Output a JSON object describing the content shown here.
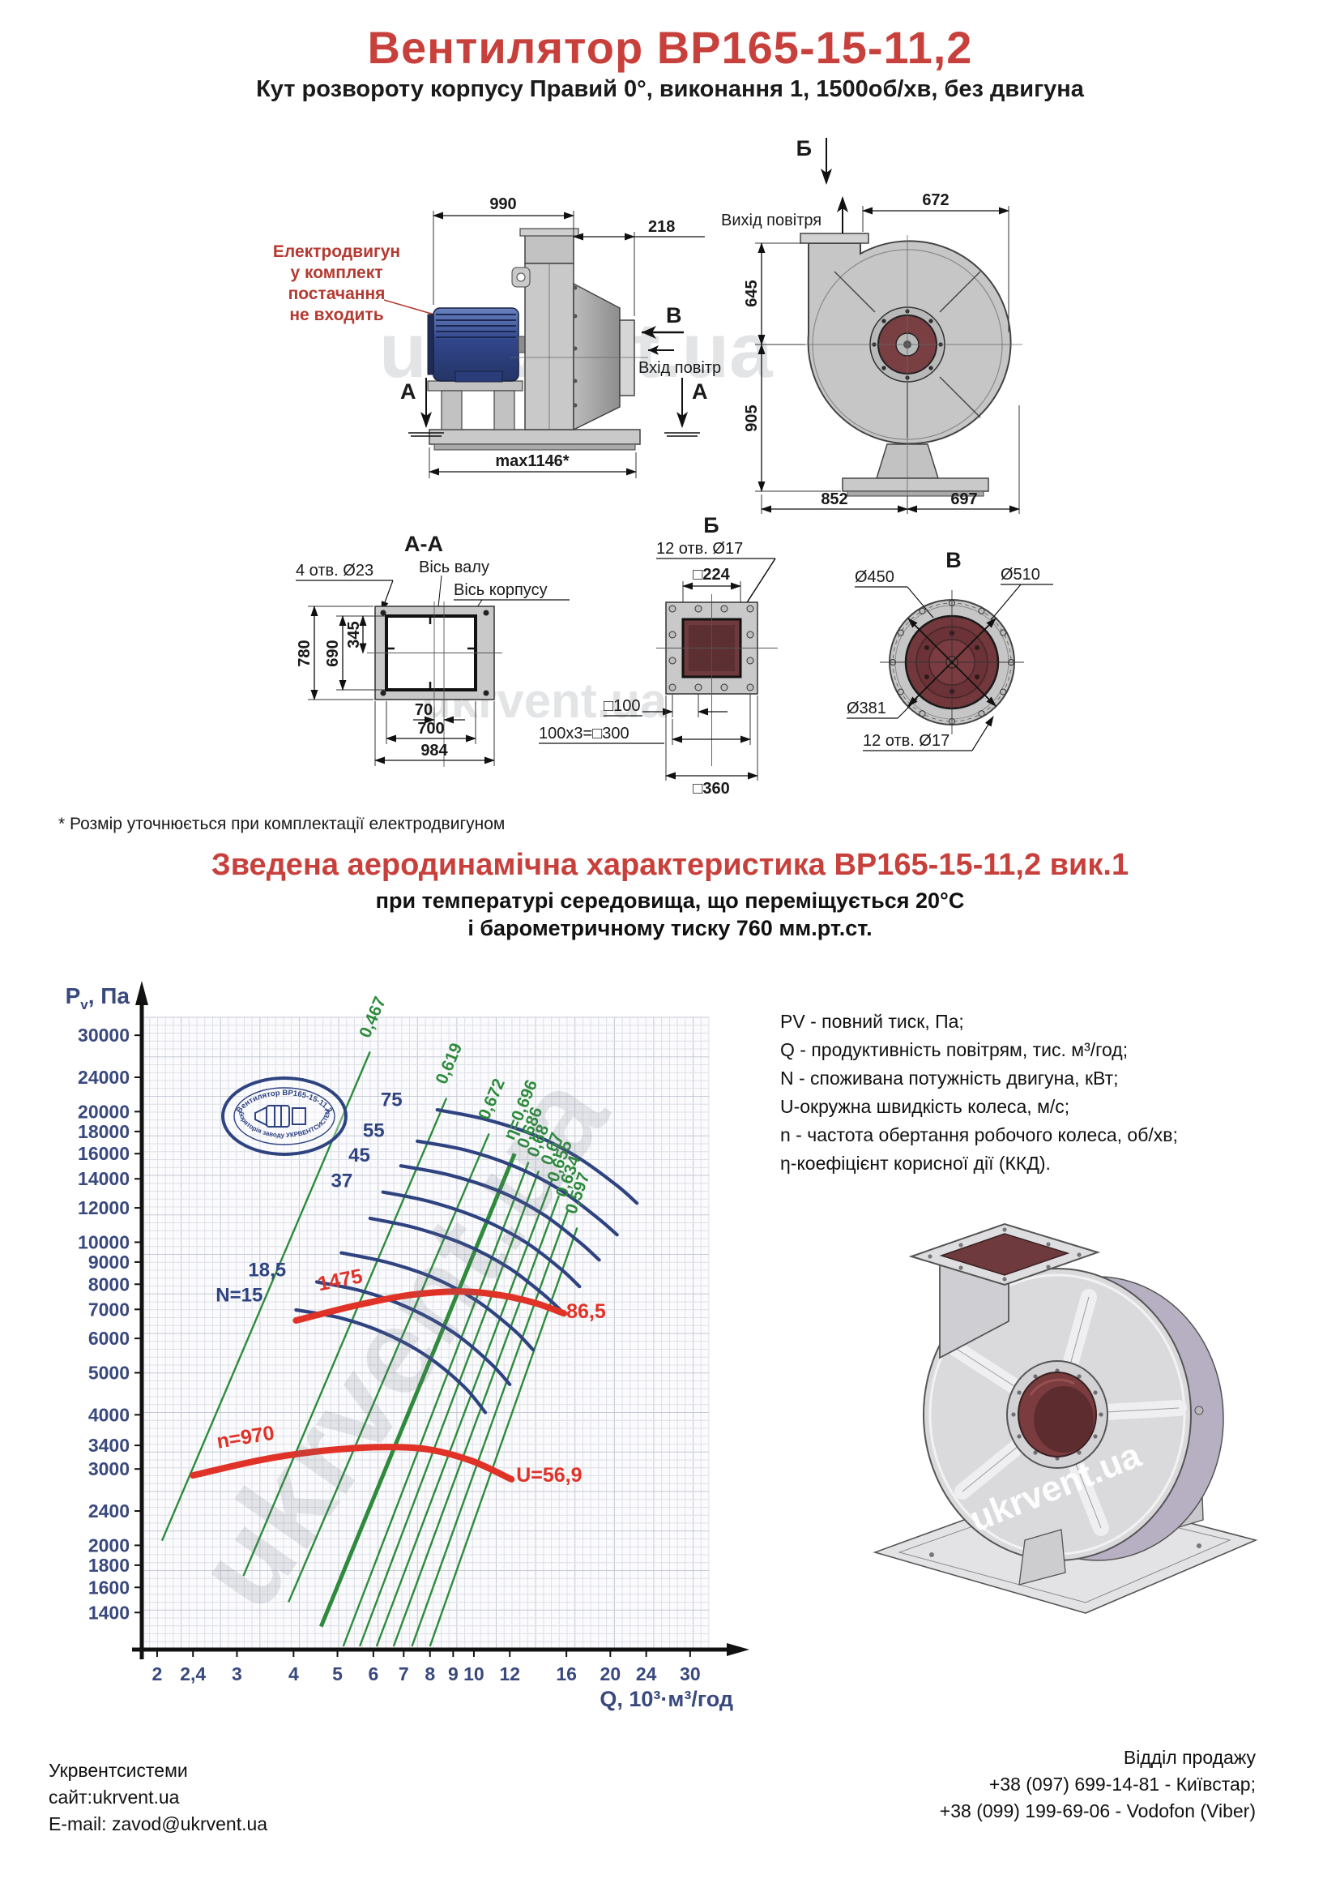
{
  "header": {
    "title": "Вентилятор ВР165-15-11,2",
    "subtitle": "Кут розвороту корпусу Правий 0°, виконання 1, 1500об/хв, без двигуна"
  },
  "page": {
    "note": "* Розмір уточнюється при комплектації електродвигуном"
  },
  "aero": {
    "title": "Зведена аеродинамічна характеристика ВР165-15-11,2 вик.1",
    "sub1": "при температурі середовища, що переміщується 20°С",
    "sub2": "і барометричному тиску 760 мм.рт.ст."
  },
  "drawings": {
    "watermark": "ukrvent.ua",
    "motor_note": [
      "Електродвигун",
      "у комплект постачання",
      "не входить"
    ],
    "side": {
      "d990": "990",
      "d218": "218",
      "dmax": "max1146*",
      "B": "В",
      "inlet": "Вхід повітря",
      "A_left": "А",
      "A_right": "А"
    },
    "front": {
      "B": "Б",
      "outlet": "Вихід повітря",
      "d672": "672",
      "d645": "645",
      "d905": "905",
      "d852": "852",
      "d697": "697"
    },
    "aa": {
      "title": "А-А",
      "holes": "4 отв. Ø23",
      "axis1": "Вісь валу",
      "axis2": "Вісь корпусу",
      "d780": "780",
      "d690": "690",
      "d345": "345",
      "d70": "70",
      "d700": "700",
      "d984": "984"
    },
    "b": {
      "title": "Б",
      "holes": "12 отв. Ø17",
      "d224": "□224",
      "d100": "□100",
      "d300": "100x3=□300",
      "d360": "□360"
    },
    "v": {
      "title": "В",
      "d450": "Ø450",
      "d510": "Ø510",
      "d381": "Ø381",
      "holes": "12 отв. Ø17"
    }
  },
  "stamp": {
    "top": "Вентилятор ВР165-15-11,2",
    "bottom": "лабораторія заводу УКРВЕНТСИСТЕМИ"
  },
  "legend_lines": [
    "PV - повний тиск, Па;",
    "Q - продуктивність повітрям, тис. м³/год;",
    "N - споживана потужність двигуна, кВт;",
    "U-окружна швидкість колеса, м/с;",
    "n - частота обертання робочого колеса, об/хв;",
    "η-коефіцієнт корисної дії (ККД)."
  ],
  "footer": {
    "company": "Укрвентсистеми",
    "site": "сайт:ukrvent.ua",
    "email": "E-mail: zavod@ukrvent.ua",
    "sales": "Відділ продажу",
    "phone1": "+38 (097) 699-14-81 - Київстар;",
    "phone2": "+38 (099) 199-69-06 - Vodofon (Viber)"
  },
  "colors": {
    "accent_red": "#C8403B",
    "curve_blue": "#2E4380",
    "line_green": "#2E8B3C",
    "curve_red": "#E03227",
    "tick_blue": "#39497E"
  },
  "chart_data": {
    "type": "line",
    "title": "Зведена аеродинамічна характеристика ВР165-15-11,2 вик.1",
    "xlabel": "Q, 10³·м³/год",
    "ylabel": "Pv, Па",
    "ylabel_parts": [
      "P",
      "v",
      ", Па"
    ],
    "x_scale": "log",
    "y_scale": "log",
    "xlim": [
      1.85,
      33
    ],
    "ylim": [
      1150,
      33000
    ],
    "grid": true,
    "x_ticks": [
      {
        "v": 2,
        "t": "2"
      },
      {
        "v": 2.4,
        "t": "2,4"
      },
      {
        "v": 3,
        "t": "3"
      },
      {
        "v": 4,
        "t": "4"
      },
      {
        "v": 5,
        "t": "5"
      },
      {
        "v": 6,
        "t": "6"
      },
      {
        "v": 7,
        "t": "7"
      },
      {
        "v": 8,
        "t": "8"
      },
      {
        "v": 9,
        "t": "9"
      },
      {
        "v": 10,
        "t": "10"
      },
      {
        "v": 12,
        "t": "12"
      },
      {
        "v": 16,
        "t": "16"
      },
      {
        "v": 20,
        "t": "20"
      },
      {
        "v": 24,
        "t": "24"
      },
      {
        "v": 30,
        "t": "30"
      }
    ],
    "y_ticks": [
      30000,
      24000,
      20000,
      18000,
      16000,
      14000,
      12000,
      10000,
      9000,
      8000,
      7000,
      6000,
      5000,
      4000,
      3400,
      3000,
      2400,
      2000,
      1800,
      1600,
      1400
    ],
    "power_curves": [
      {
        "label": "N=15",
        "label_at": [
          3.42,
          7300
        ],
        "points": [
          [
            4.05,
            6980
          ],
          [
            5.1,
            6680
          ],
          [
            6.4,
            6150
          ],
          [
            7.9,
            5450
          ],
          [
            9.5,
            4650
          ],
          [
            10.6,
            4050
          ]
        ]
      },
      {
        "label": "18,5",
        "label_at": [
          3.85,
          8350
        ],
        "points": [
          [
            4.5,
            8100
          ],
          [
            5.7,
            7700
          ],
          [
            7.2,
            7050
          ],
          [
            9.0,
            6200
          ],
          [
            10.8,
            5300
          ],
          [
            12.0,
            4700
          ]
        ]
      },
      {
        "label": "",
        "label_at": null,
        "points": [
          [
            5.1,
            9450
          ],
          [
            6.4,
            9000
          ],
          [
            8.1,
            8300
          ],
          [
            10.1,
            7350
          ],
          [
            12.2,
            6300
          ],
          [
            13.5,
            5650
          ]
        ]
      },
      {
        "label": "",
        "label_at": null,
        "points": [
          [
            5.9,
            11350
          ],
          [
            7.4,
            10800
          ],
          [
            9.5,
            9900
          ],
          [
            11.9,
            8750
          ],
          [
            14.3,
            7550
          ],
          [
            15.8,
            6850
          ]
        ]
      },
      {
        "label": "37",
        "label_at": [
          5.4,
          13400
        ],
        "points": [
          [
            6.3,
            13050
          ],
          [
            8.0,
            12400
          ],
          [
            10.4,
            11300
          ],
          [
            13.0,
            10000
          ],
          [
            15.6,
            8650
          ],
          [
            17.1,
            7900
          ]
        ]
      },
      {
        "label": "45",
        "label_at": [
          5.9,
          15350
        ],
        "points": [
          [
            6.9,
            15000
          ],
          [
            8.8,
            14300
          ],
          [
            11.4,
            13100
          ],
          [
            14.2,
            11600
          ],
          [
            17.1,
            10000
          ],
          [
            18.9,
            9100
          ]
        ]
      },
      {
        "label": "55",
        "label_at": [
          6.35,
          17500
        ],
        "points": [
          [
            7.5,
            17100
          ],
          [
            9.6,
            16300
          ],
          [
            12.4,
            14900
          ],
          [
            15.5,
            13200
          ],
          [
            18.7,
            11400
          ],
          [
            20.7,
            10400
          ]
        ]
      },
      {
        "label": "75",
        "label_at": [
          6.95,
          20600
        ],
        "points": [
          [
            8.3,
            20200
          ],
          [
            10.6,
            19200
          ],
          [
            13.7,
            17600
          ],
          [
            17.1,
            15600
          ],
          [
            20.7,
            13500
          ],
          [
            22.9,
            12300
          ]
        ]
      }
    ],
    "efficiency_lines": [
      {
        "label": "0,467",
        "bold": false,
        "p1": [
          2.05,
          2050
        ],
        "p2": [
          5.9,
          27500
        ]
      },
      {
        "label": "0,619",
        "bold": false,
        "p1": [
          3.1,
          1700
        ],
        "p2": [
          8.7,
          21500
        ]
      },
      {
        "label": "0,672",
        "bold": false,
        "p1": [
          3.9,
          1480
        ],
        "p2": [
          10.8,
          17800
        ]
      },
      {
        "label": "η=0,696",
        "bold": true,
        "p1": [
          4.6,
          1300
        ],
        "p2": [
          12.3,
          16000
        ]
      },
      {
        "label": "0,686",
        "bold": false,
        "p1": [
          5.15,
          1170
        ],
        "p2": [
          13.2,
          15300
        ]
      },
      {
        "label": "0,68",
        "bold": false,
        "p1": [
          5.6,
          1170
        ],
        "p2": [
          13.9,
          14600
        ]
      },
      {
        "label": "0,67",
        "bold": false,
        "p1": [
          6.1,
          1170
        ],
        "p2": [
          14.9,
          14000
        ]
      },
      {
        "label": "0,655",
        "bold": false,
        "p1": [
          6.65,
          1170
        ],
        "p2": [
          15.4,
          12800
        ]
      },
      {
        "label": "0,634",
        "bold": false,
        "p1": [
          7.3,
          1170
        ],
        "p2": [
          16.1,
          11800
        ]
      },
      {
        "label": "0,597",
        "bold": false,
        "p1": [
          8.0,
          1170
        ],
        "p2": [
          16.9,
          10800
        ]
      }
    ],
    "speed_curves": [
      {
        "label_start": "1475",
        "label_start_at": [
          5.1,
          7900
        ],
        "label_start_rot": -11,
        "label_end": "86,5",
        "label_end_at": [
          16.0,
          6680
        ],
        "points": [
          [
            4.05,
            6600
          ],
          [
            5.5,
            7150
          ],
          [
            7.2,
            7550
          ],
          [
            9.3,
            7700
          ],
          [
            11.4,
            7550
          ],
          [
            13.6,
            7250
          ],
          [
            15.8,
            6850
          ]
        ]
      },
      {
        "label_start": "n=970",
        "label_start_at": [
          3.15,
          3430
        ],
        "label_start_rot": -9,
        "label_end": "U=56,9",
        "label_end_at": [
          12.4,
          2800
        ],
        "points": [
          [
            2.4,
            2900
          ],
          [
            3.4,
            3150
          ],
          [
            4.6,
            3300
          ],
          [
            6.2,
            3370
          ],
          [
            7.9,
            3330
          ],
          [
            9.9,
            3130
          ],
          [
            12.1,
            2840
          ]
        ]
      }
    ]
  }
}
